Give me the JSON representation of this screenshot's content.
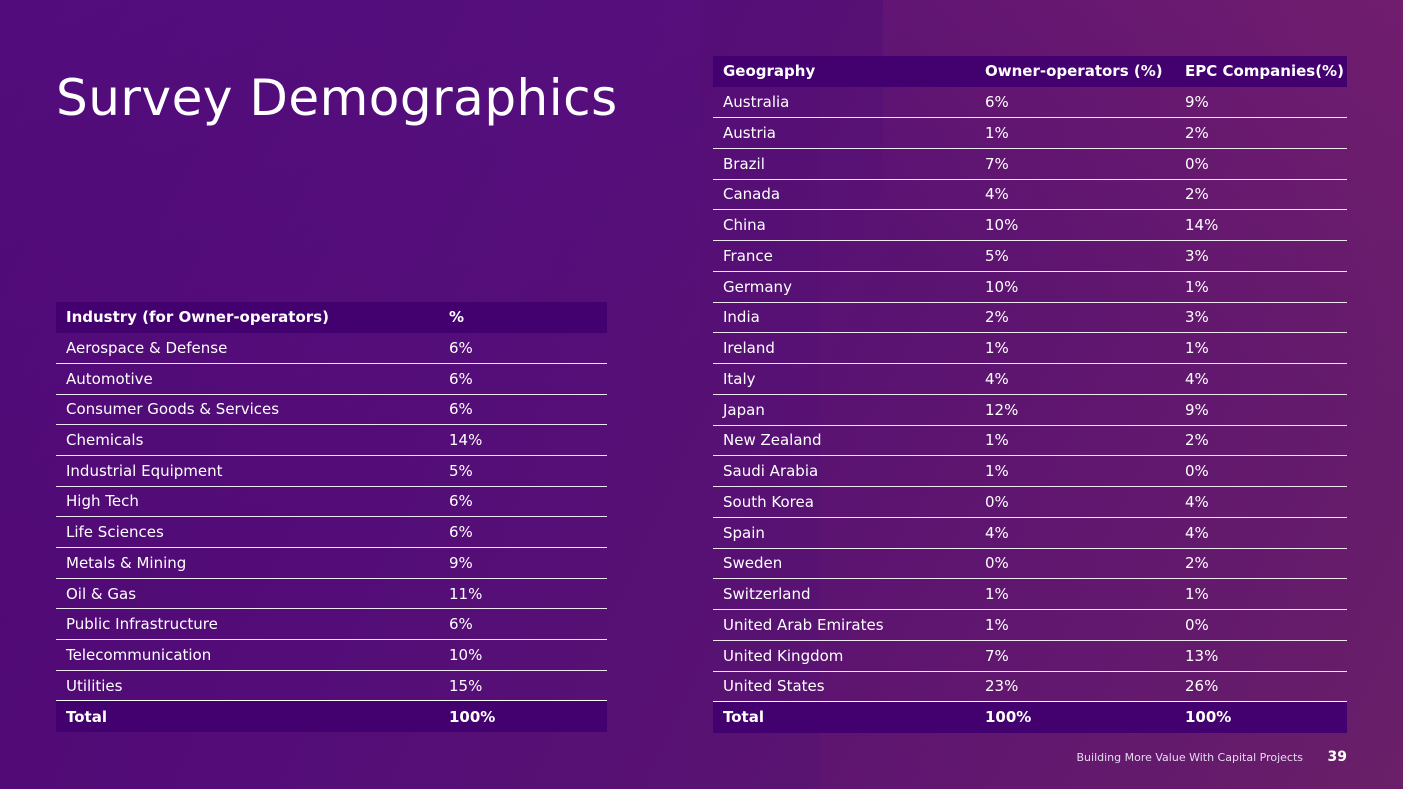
{
  "title": "Survey Demographics",
  "industry_table": {
    "headers": [
      "Industry (for Owner-operators)",
      "%"
    ],
    "rows": [
      [
        "Aerospace & Defense",
        "6%"
      ],
      [
        "Automotive",
        "6%"
      ],
      [
        "Consumer Goods & Services",
        "6%"
      ],
      [
        "Chemicals",
        "14%"
      ],
      [
        "Industrial Equipment",
        "5%"
      ],
      [
        "High Tech",
        "6%"
      ],
      [
        "Life Sciences",
        "6%"
      ],
      [
        "Metals & Mining",
        "9%"
      ],
      [
        "Oil & Gas",
        "11%"
      ],
      [
        "Public Infrastructure",
        "6%"
      ],
      [
        "Telecommunication",
        "10%"
      ],
      [
        "Utilities",
        "15%"
      ]
    ],
    "total": [
      "Total",
      "100%"
    ]
  },
  "geography_table": {
    "headers": [
      "Geography",
      "Owner-operators (%)",
      "EPC Companies(%)"
    ],
    "rows": [
      [
        "Australia",
        "6%",
        "9%"
      ],
      [
        "Austria",
        "1%",
        "2%"
      ],
      [
        "Brazil",
        "7%",
        "0%"
      ],
      [
        "Canada",
        "4%",
        "2%"
      ],
      [
        "China",
        "10%",
        "14%"
      ],
      [
        "France",
        "5%",
        "3%"
      ],
      [
        "Germany",
        "10%",
        "1%"
      ],
      [
        "India",
        "2%",
        "3%"
      ],
      [
        "Ireland",
        "1%",
        "1%"
      ],
      [
        "Italy",
        "4%",
        "4%"
      ],
      [
        "Japan",
        "12%",
        "9%"
      ],
      [
        "New Zealand",
        "1%",
        "2%"
      ],
      [
        "Saudi Arabia",
        "1%",
        "0%"
      ],
      [
        "South Korea",
        "0%",
        "4%"
      ],
      [
        "Spain",
        "4%",
        "4%"
      ],
      [
        "Sweden",
        "0%",
        "2%"
      ],
      [
        "Switzerland",
        "1%",
        "1%"
      ],
      [
        "United Arab Emirates",
        "1%",
        "0%"
      ],
      [
        "United Kingdom",
        "7%",
        "13%"
      ],
      [
        "United States",
        "23%",
        "26%"
      ]
    ],
    "total": [
      "Total",
      "100%",
      "100%"
    ]
  },
  "footer": {
    "text": "Building More Value With Capital Projects",
    "page_number": "39"
  },
  "colors": {
    "header_fill": "#43006f",
    "background": "#540d78"
  }
}
